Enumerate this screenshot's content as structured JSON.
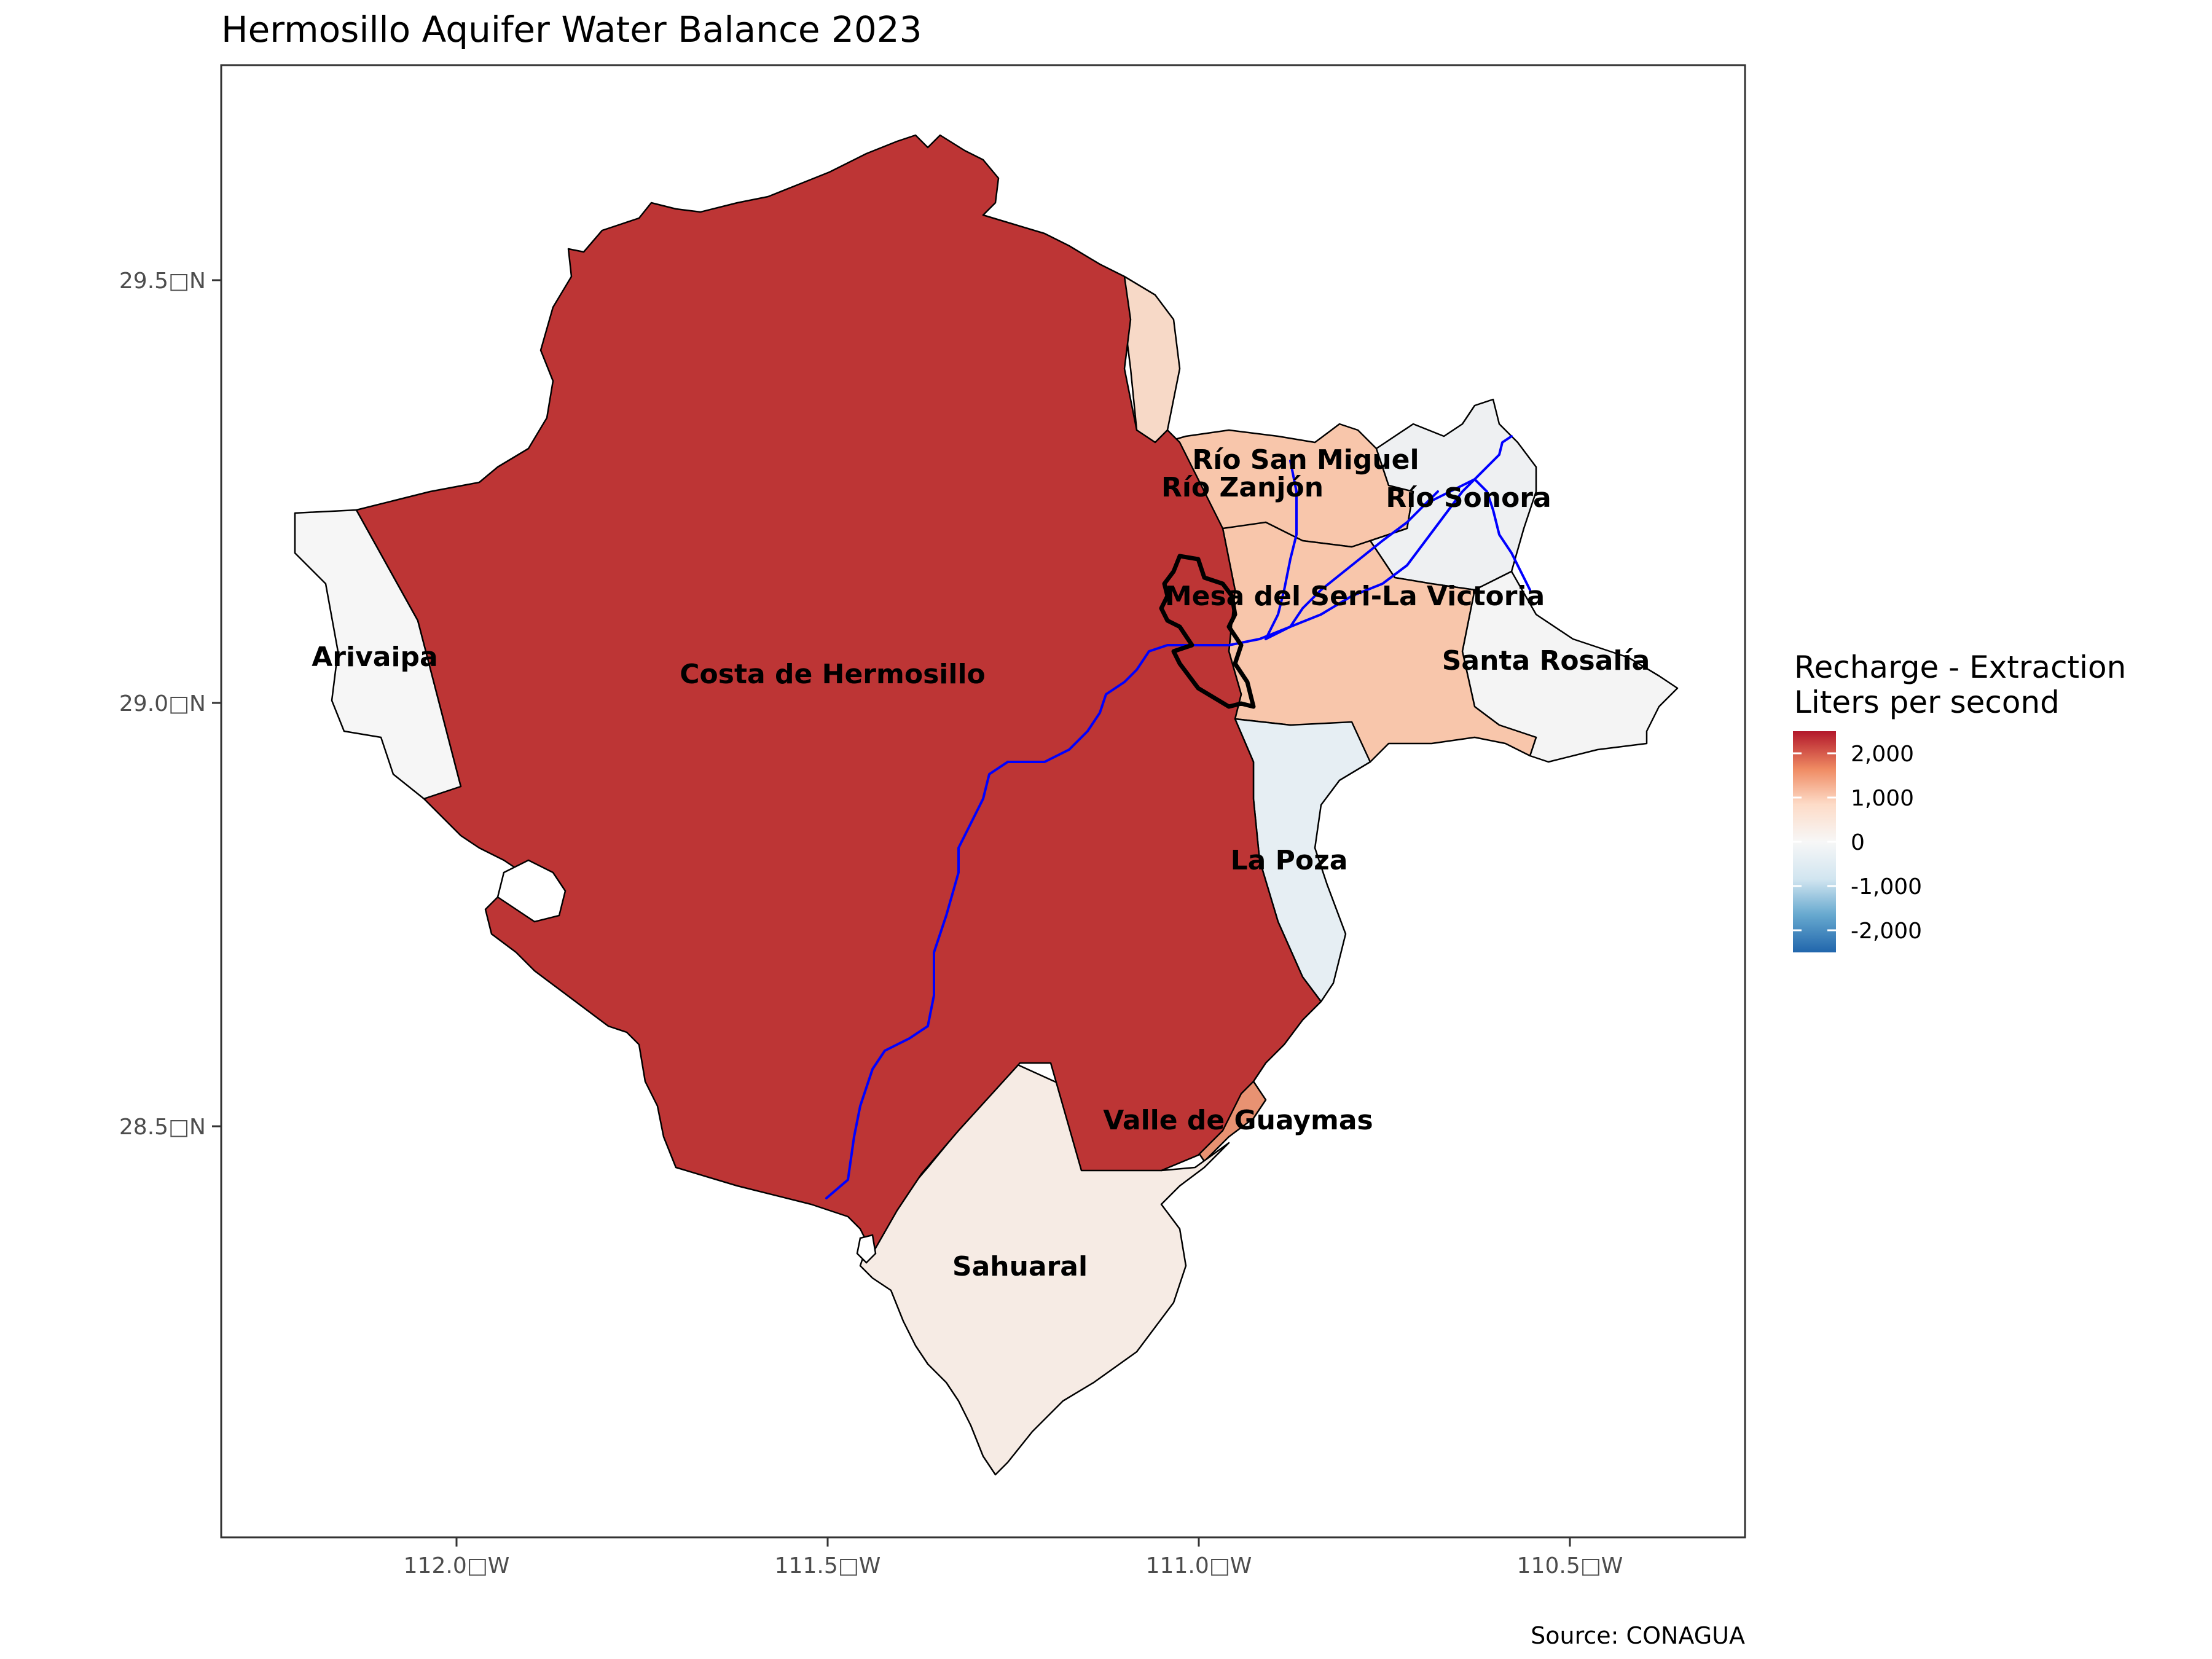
{
  "title": "Hermosillo Aquifer Water Balance 2023",
  "source": "Source: CONAGUA",
  "axes": {
    "y_ticks": [
      "29.5□N",
      "29.0□N",
      "28.5□N"
    ],
    "x_ticks": [
      "112.0□W",
      "111.5□W",
      "111.0□W",
      "110.5□W"
    ]
  },
  "legend": {
    "title_line1": "Recharge - Extraction",
    "title_line2": "Liters per second",
    "ticks": [
      "2,000",
      "1,000",
      "0",
      "-1,000",
      "-2,000"
    ],
    "gradient_colors": [
      "#b2182b",
      "#ef8a62",
      "#fddbc7",
      "#f7f7f7",
      "#d1e5f0",
      "#67a9cf",
      "#2166ac"
    ]
  },
  "regions": [
    {
      "name": "Costa de Hermosillo",
      "fill": "#bd3535"
    },
    {
      "name": "Arivaipa",
      "fill": "#f6f6f6"
    },
    {
      "name": "Sahuaral",
      "fill": "#f6ebe4"
    },
    {
      "name": "Valle de Guaymas",
      "fill": "#e89272"
    },
    {
      "name": "La Poza",
      "fill": "#e6eef3"
    },
    {
      "name": "Mesa del Seri-La Victoria",
      "fill": "#f8c6ab"
    },
    {
      "name": "Santa Rosalía",
      "fill": "#f4f4f4"
    },
    {
      "name": "Río Sonora",
      "fill": "#eef0f2"
    },
    {
      "name": "Río Zanjón",
      "fill": "#f7d9c7"
    },
    {
      "name": "Río San Miguel",
      "fill": "#f8c6ab"
    }
  ],
  "colors": {
    "river": "#0000ff",
    "city_outline": "#000000",
    "border": "#333333"
  }
}
